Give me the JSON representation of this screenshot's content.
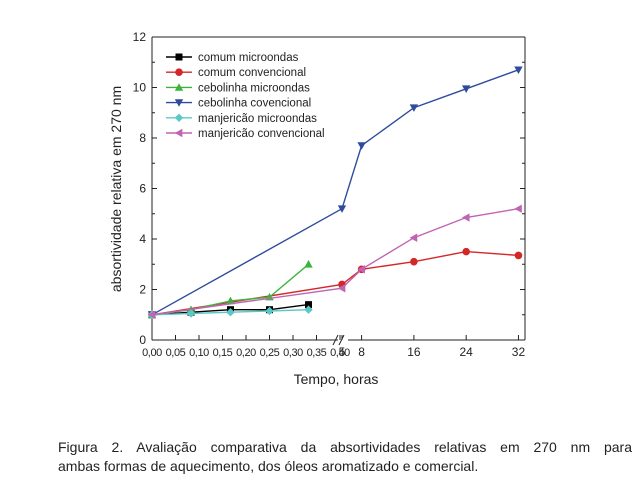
{
  "chart_data": {
    "type": "line",
    "xlabel": "Tempo, horas",
    "ylabel": "absortividade relativa em 270 nm",
    "ylim": [
      0,
      12
    ],
    "yticks": [
      "0",
      "2",
      "4",
      "6",
      "8",
      "10",
      "12"
    ],
    "x_segments": [
      {
        "range": [
          0,
          0.4
        ],
        "ticks": [
          0,
          0.05,
          0.1,
          0.15,
          0.2,
          0.25,
          0.3,
          0.35,
          0.4
        ],
        "tick_labels": [
          "0,00",
          "0,05",
          "0,10",
          "0,15",
          "0,20",
          "0,25",
          "0,30",
          "0,35",
          "0,40"
        ]
      },
      {
        "range": [
          5,
          33
        ],
        "ticks": [
          5,
          8,
          16,
          24,
          32
        ],
        "tick_labels": [
          "5",
          "8",
          "16",
          "24",
          "32"
        ]
      }
    ],
    "axis_break": true,
    "legend_position": "top-left",
    "grid": false,
    "series": [
      {
        "name": "comum microondas",
        "color": "#000000",
        "marker": "square",
        "x": [
          0,
          0.083,
          0.167,
          0.25,
          0.333
        ],
        "y": [
          1.0,
          1.1,
          1.2,
          1.2,
          1.4
        ]
      },
      {
        "name": "comum convencional",
        "color": "#d62728",
        "marker": "circle",
        "x": [
          0,
          5,
          8,
          16,
          24,
          32
        ],
        "y": [
          1.0,
          2.2,
          2.8,
          3.1,
          3.5,
          3.35
        ]
      },
      {
        "name": "cebolinha microondas",
        "color": "#3cb43c",
        "marker": "triangle-up",
        "x": [
          0,
          0.083,
          0.167,
          0.25,
          0.333
        ],
        "y": [
          1.0,
          1.2,
          1.55,
          1.7,
          3.0
        ]
      },
      {
        "name": "cebolinha covencional",
        "color": "#2e4b9e",
        "marker": "triangle-down",
        "x": [
          0,
          5,
          8,
          16,
          24,
          32
        ],
        "y": [
          1.0,
          5.2,
          7.7,
          9.2,
          9.95,
          10.7
        ]
      },
      {
        "name": "manjericão microondas",
        "color": "#5bc8c8",
        "marker": "diamond",
        "x": [
          0,
          0.083,
          0.167,
          0.25,
          0.333
        ],
        "y": [
          1.0,
          1.05,
          1.1,
          1.15,
          1.2
        ]
      },
      {
        "name": "manjericão convencional",
        "color": "#c064b4",
        "marker": "triangle-left",
        "x": [
          0,
          5,
          8,
          16,
          24,
          32
        ],
        "y": [
          1.0,
          2.05,
          2.8,
          4.05,
          4.85,
          5.2
        ]
      }
    ]
  },
  "caption": {
    "line1": "Figura 2. Avaliação comparativa da absortividades relativas em 270 nm para",
    "line2": "ambas formas de aquecimento, dos óleos aromatizado e comercial."
  }
}
